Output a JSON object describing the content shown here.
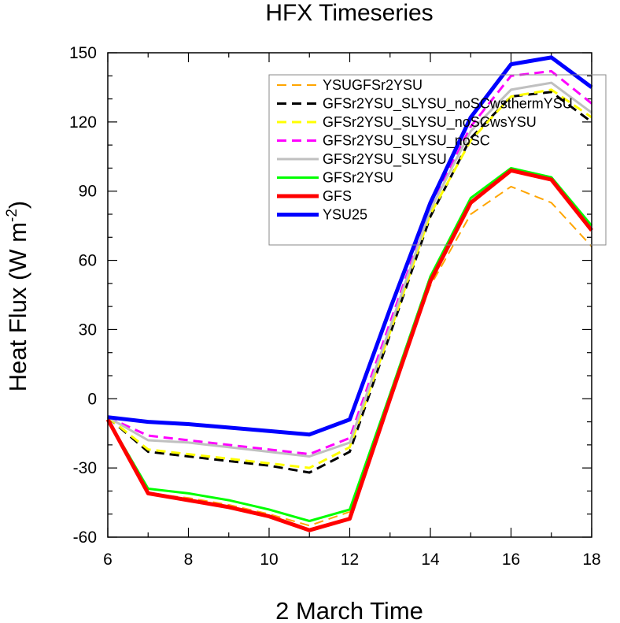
{
  "chart_data": {
    "type": "line",
    "title": "HFX Timeseries",
    "xlabel": "2 March Time",
    "ylabel_main": "Heat Flux (W m",
    "ylabel_sup": "-2",
    "ylabel_close": ")",
    "xlim": [
      6,
      18
    ],
    "ylim": [
      -60,
      150
    ],
    "xticks": [
      "6",
      "8",
      "10",
      "12",
      "14",
      "16",
      "18"
    ],
    "yticks": [
      "150",
      "120",
      "90",
      "60",
      "30",
      "0",
      "-30",
      "-60"
    ],
    "x": [
      6,
      7,
      8,
      9,
      10,
      11,
      12,
      13,
      14,
      15,
      16,
      17,
      18
    ],
    "series": [
      {
        "name": "YSUGFSr2YSU",
        "color": "#ffa500",
        "dash": true,
        "width": 2,
        "values": [
          -9,
          -41,
          -43,
          -46,
          -50,
          -55,
          -49,
          2,
          49,
          80,
          92,
          85,
          66
        ]
      },
      {
        "name": "GFSr2YSU_SLYSU_noSCwsthermYSU",
        "color": "#000000",
        "dash": true,
        "width": 3,
        "values": [
          -8,
          -23,
          -25,
          -27,
          -29,
          -32,
          -23,
          28,
          79,
          113,
          131,
          133,
          120
        ]
      },
      {
        "name": "GFSr2YSU_SLYSU_noSCwsYSU",
        "color": "#ffff00",
        "dash": true,
        "width": 3,
        "values": [
          -8,
          -22,
          -24,
          -26,
          -28,
          -30,
          -21,
          29,
          80,
          112,
          131,
          134,
          122
        ]
      },
      {
        "name": "GFSr2YSU_SLYSU_noSC",
        "color": "#ff00ff",
        "dash": true,
        "width": 3,
        "values": [
          -8,
          -16,
          -18,
          -20,
          -22,
          -24,
          -17,
          33,
          83,
          118,
          140,
          142,
          128
        ]
      },
      {
        "name": "GFSr2YSU_SLYSU",
        "color": "#c0c0c0",
        "dash": false,
        "width": 3,
        "values": [
          -8,
          -18,
          -19,
          -21,
          -23,
          -25,
          -19,
          31,
          82,
          116,
          134,
          137,
          124
        ]
      },
      {
        "name": "GFSr2YSU",
        "color": "#00ff00",
        "dash": false,
        "width": 3,
        "values": [
          -9,
          -39,
          -41,
          -44,
          -48,
          -53,
          -48,
          2,
          53,
          87,
          100,
          96,
          75
        ]
      },
      {
        "name": "GFS",
        "color": "#ff0000",
        "dash": false,
        "width": 5,
        "values": [
          -9,
          -41,
          -44,
          -47,
          -51,
          -57,
          -52,
          0,
          51,
          85,
          99,
          95,
          73
        ]
      },
      {
        "name": "YSU25",
        "color": "#0000ff",
        "dash": false,
        "width": 5,
        "values": [
          -8,
          -10,
          -11,
          -12.5,
          -14,
          -15.5,
          -9,
          39,
          85,
          122,
          145,
          148,
          135
        ]
      }
    ]
  }
}
